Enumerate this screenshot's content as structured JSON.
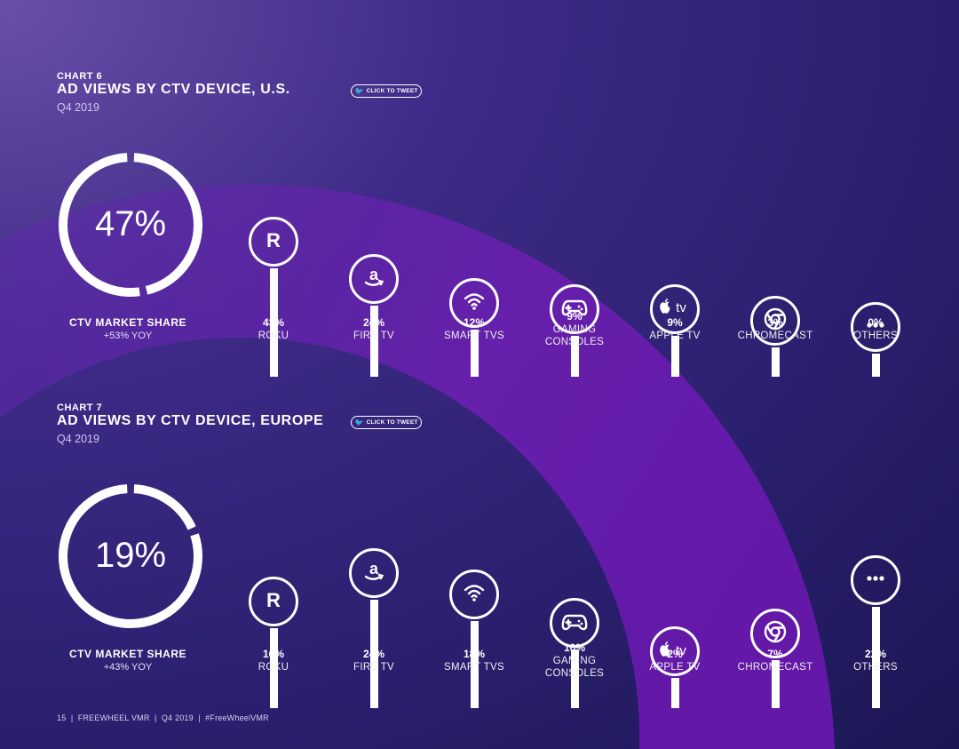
{
  "charts": [
    {
      "kicker": "CHART 6",
      "title": "AD VIEWS BY CTV DEVICE, U.S.",
      "period": "Q4 2019",
      "tweet_label": "CLICK TO TWEET",
      "market_share_value": "47%",
      "market_share_fraction": 0.47,
      "market_share_label": "CTV MARKET SHARE",
      "market_share_yoy": "+53% YOY"
    },
    {
      "kicker": "CHART 7",
      "title": "AD VIEWS BY CTV DEVICE, EUROPE",
      "period": "Q4 2019",
      "tweet_label": "CLICK TO TWEET",
      "market_share_value": "19%",
      "market_share_fraction": 0.19,
      "market_share_label": "CTV MARKET SHARE",
      "market_share_yoy": "+43% YOY"
    }
  ],
  "chart_data": [
    {
      "type": "bar",
      "title": "AD VIEWS BY CTV DEVICE, U.S.",
      "subtitle": "Q4 2019",
      "categories": [
        "ROKU",
        "FIRE TV",
        "SMART TVS",
        "GAMING CONSOLES",
        "APPLE TV",
        "CHROMECAST",
        "OTHERS"
      ],
      "values": [
        43,
        24,
        12,
        9,
        9,
        3,
        0
      ],
      "value_labels": [
        "43%",
        "24%",
        "12%",
        "9%",
        "9%",
        "3%",
        "0%"
      ],
      "icons": [
        "roku-icon",
        "amazon-icon",
        "wifi-icon",
        "gamepad-icon",
        "apple-tv-icon",
        "chromecast-icon",
        "more-icon"
      ],
      "ylim": [
        0,
        43
      ]
    },
    {
      "type": "bar",
      "title": "AD VIEWS BY CTV DEVICE, EUROPE",
      "subtitle": "Q4 2019",
      "categories": [
        "ROKU",
        "FIRE TV",
        "SMART TVS",
        "GAMING CONSOLES",
        "APPLE TV",
        "CHROMECAST",
        "OTHERS"
      ],
      "values": [
        16,
        24,
        18,
        10,
        2,
        7,
        22
      ],
      "value_labels": [
        "16%",
        "24%",
        "18%",
        "10%",
        "2%",
        "7%",
        "22%"
      ],
      "icons": [
        "roku-icon",
        "amazon-icon",
        "wifi-icon",
        "gamepad-icon",
        "apple-tv-icon",
        "chromecast-icon",
        "more-icon"
      ],
      "ylim": [
        0,
        24
      ]
    }
  ],
  "label_lines": {
    "GAMING CONSOLES": [
      "GAMING",
      "CONSOLES"
    ]
  },
  "colors": {
    "accent_arc": "#6b1fb0",
    "white": "#ffffff"
  },
  "footer": {
    "page": "15",
    "brand": "FREEWHEEL VMR",
    "period": "Q4 2019",
    "hashtag": "#FreeWheelVMR"
  }
}
